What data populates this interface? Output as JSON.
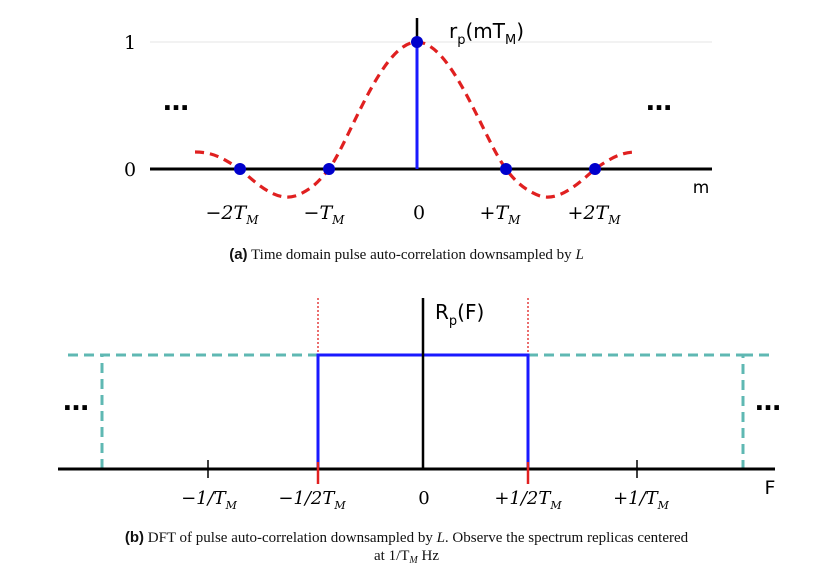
{
  "panel_a": {
    "y_tick_1": "1",
    "y_tick_0": "0",
    "curve_label_main": "r",
    "curve_label_sub": "p",
    "curve_label_arg": "(mT",
    "curve_label_arg_sub": "M",
    "curve_label_close": ")",
    "axis_label": "m",
    "ellipsis_left": "…",
    "ellipsis_right": "…",
    "x_ticks": [
      {
        "pre": "−2T",
        "sub": "M"
      },
      {
        "pre": "−T",
        "sub": "M"
      },
      {
        "pre": "0",
        "sub": ""
      },
      {
        "pre": "+T",
        "sub": "M"
      },
      {
        "pre": "+2T",
        "sub": "M"
      }
    ],
    "caption_tag": "(a)",
    "caption_text": " Time domain pulse auto-correlation downsampled by ",
    "caption_var": "L"
  },
  "panel_b": {
    "curve_label_main": "R",
    "curve_label_sub": "p",
    "curve_label_arg": "(F)",
    "axis_label": "F",
    "ellipsis_left": "…",
    "ellipsis_right": "…",
    "x_ticks": [
      {
        "pre": "−1/T",
        "sub": "M"
      },
      {
        "pre": "−1/2T",
        "sub": "M"
      },
      {
        "pre": "0",
        "sub": ""
      },
      {
        "pre": "+1/2T",
        "sub": "M"
      },
      {
        "pre": "+1/T",
        "sub": "M"
      }
    ],
    "caption_tag": "(b)",
    "caption_text_1": " DFT of pulse auto-correlation downsampled by ",
    "caption_var": "L",
    "caption_text_2": ". Observe the spectrum replicas centered",
    "caption_line2_pre": "at 1/T",
    "caption_line2_sub": "M",
    "caption_line2_post": " Hz"
  },
  "colors": {
    "axis": "#000000",
    "stem": "#1a1aff",
    "dots": "#0000cc",
    "dashed_curve": "#e02020",
    "replica": "#5fb8b3",
    "band_edge": "#e02020"
  }
}
